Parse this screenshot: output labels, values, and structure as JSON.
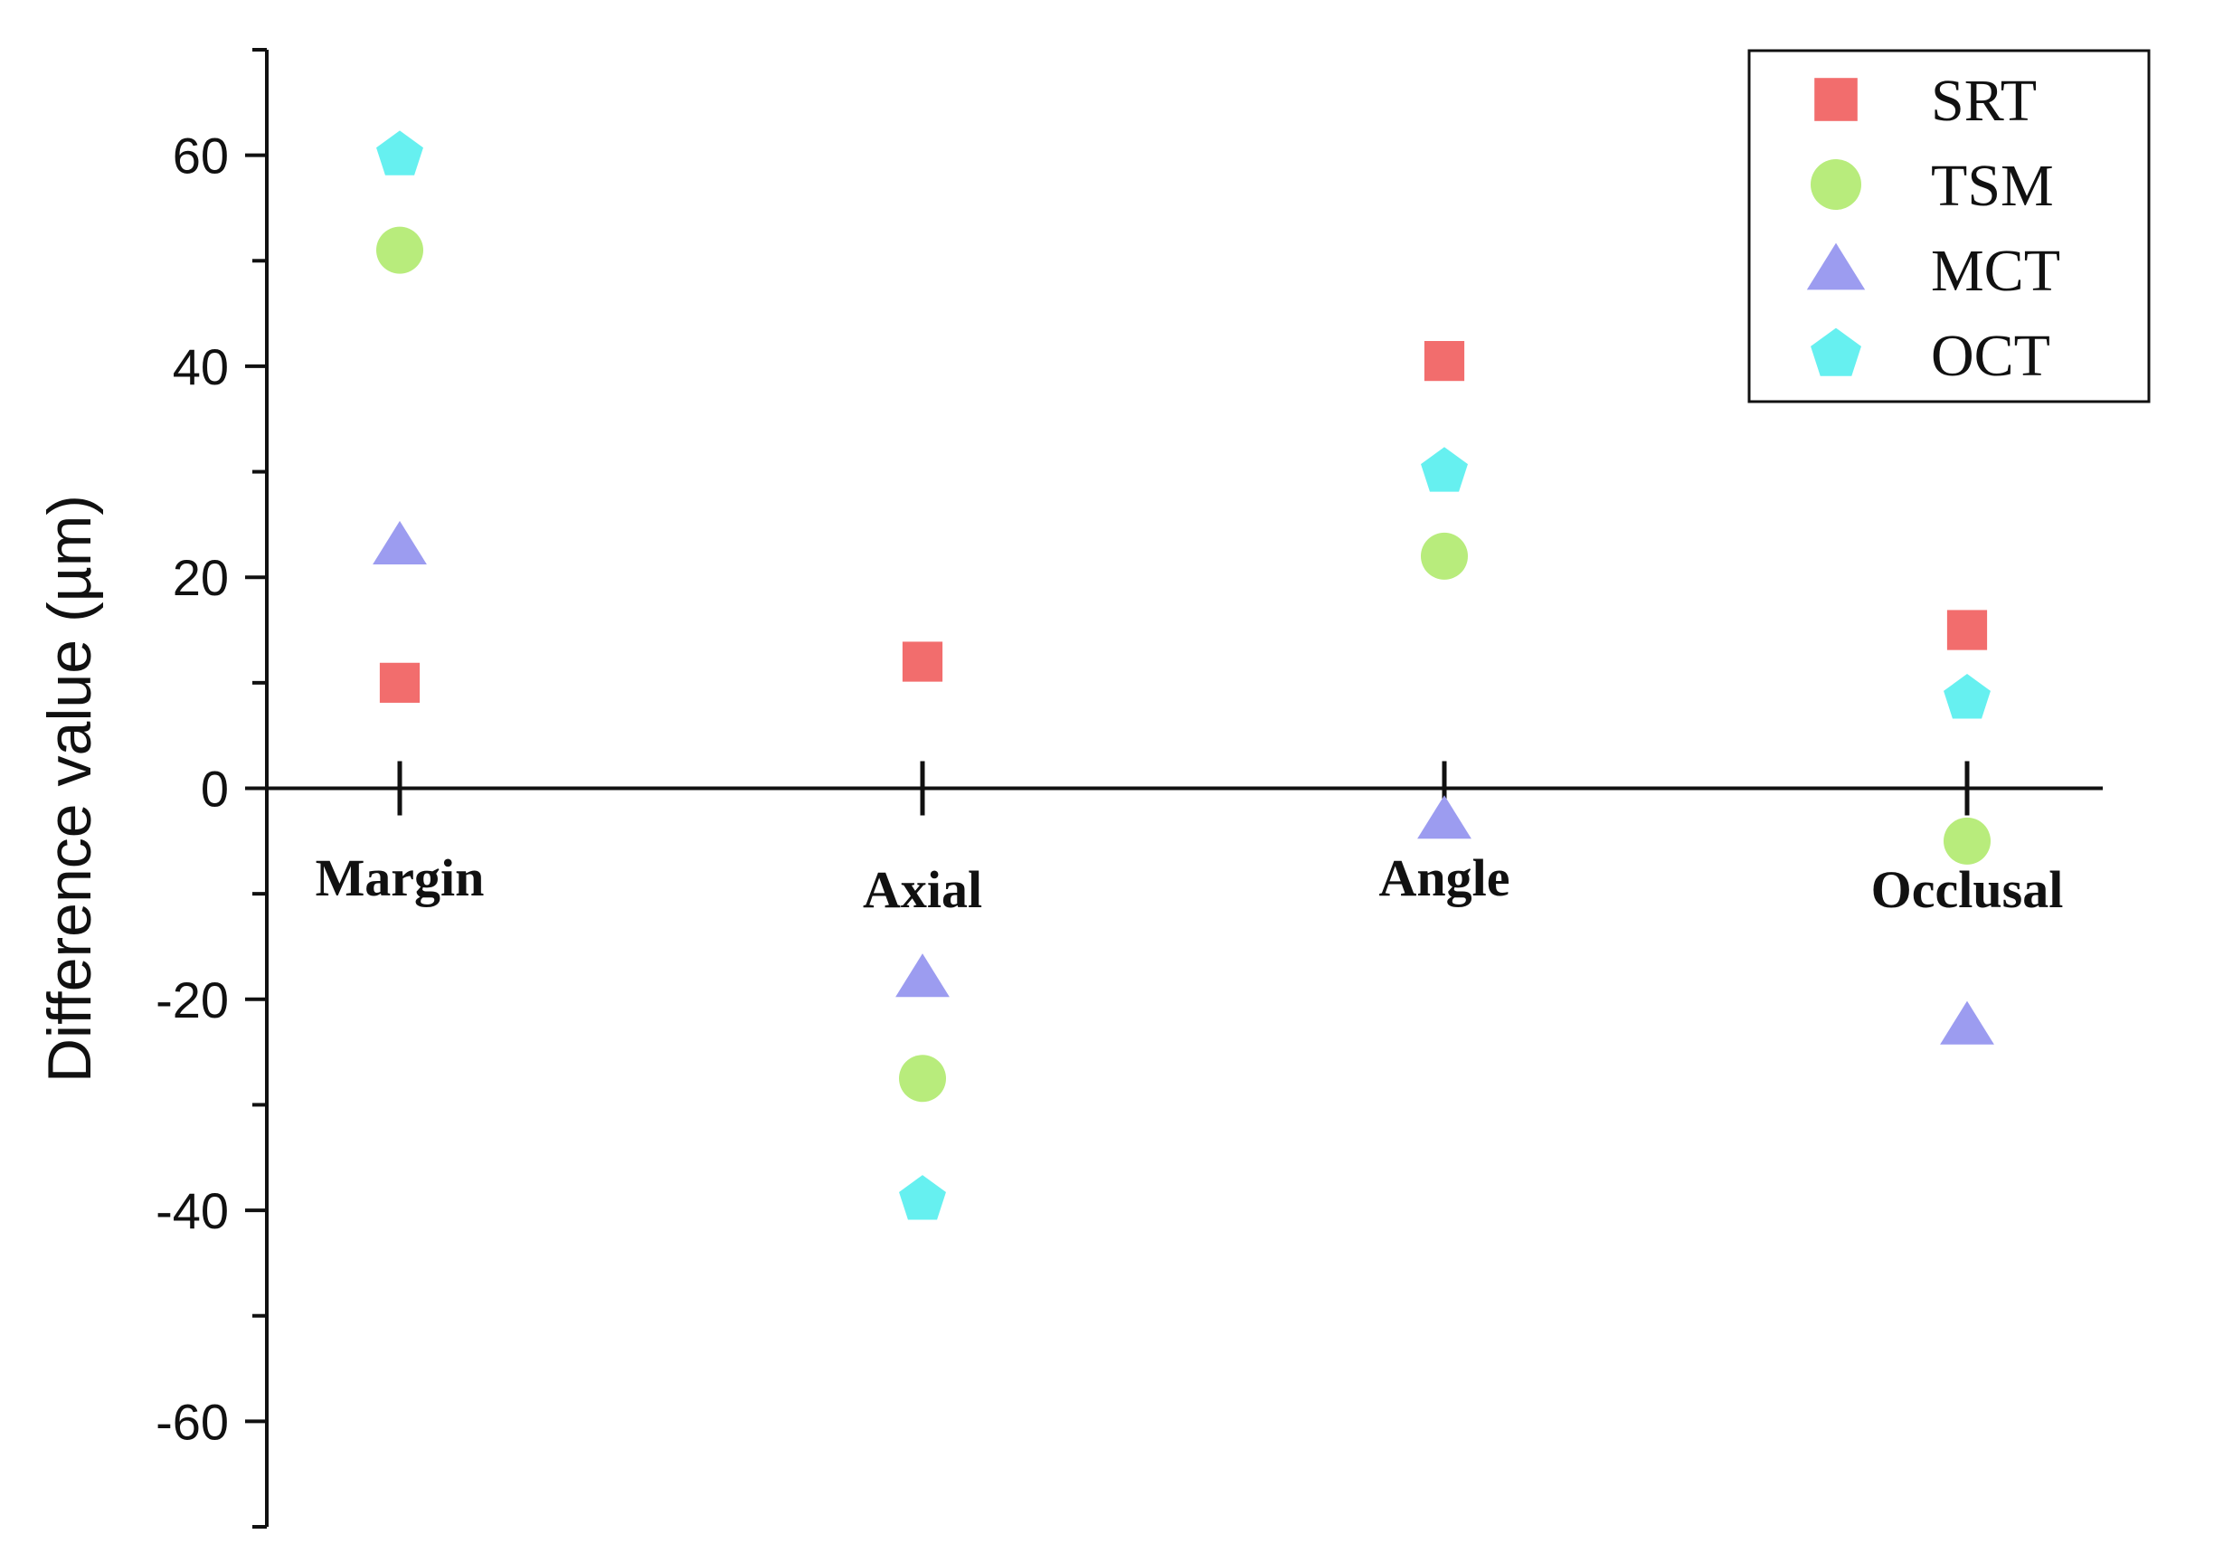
{
  "chart_data": {
    "type": "scatter",
    "categories": [
      "Margin",
      "Axial",
      "Angle",
      "Occlusal"
    ],
    "ylabel": "Difference value (µm)",
    "ylim": [
      -70,
      70
    ],
    "yticks": [
      -60,
      -40,
      -20,
      0,
      20,
      40,
      60
    ],
    "ytick_labels": [
      "-60",
      "-40",
      "-20",
      "0",
      "20",
      "40",
      "60"
    ],
    "grid": false,
    "legend_position": "top-right",
    "series": [
      {
        "name": "SRT",
        "marker": "square",
        "color": "#f26d6d",
        "values": [
          10,
          12,
          40.5,
          15
        ]
      },
      {
        "name": "TSM",
        "marker": "circle",
        "color": "#b8ec7c",
        "values": [
          51,
          -27.5,
          22,
          -5
        ]
      },
      {
        "name": "MCT",
        "marker": "triangle",
        "color": "#9c9cf0",
        "values": [
          23,
          -18,
          -3,
          -22.5
        ]
      },
      {
        "name": "OCT",
        "marker": "pentagon",
        "color": "#66f0f0",
        "values": [
          60,
          -39,
          30,
          8.5
        ]
      }
    ]
  }
}
